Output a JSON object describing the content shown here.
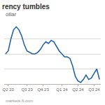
{
  "chart_data": {
    "type": "line",
    "title": "rency tumbles",
    "subtitle": "ollar",
    "source": "markets.ft.com",
    "categories": [
      null,
      "Q2 23",
      null,
      null,
      null,
      null,
      null,
      null,
      "Q3 23",
      null,
      null,
      null,
      null,
      null,
      "Q4 23",
      null,
      null,
      null,
      null,
      null,
      null,
      "Q1 24",
      null,
      null,
      null,
      null,
      null,
      "Q2 24",
      null,
      null,
      null,
      null,
      null,
      "Q3 24",
      null,
      null
    ],
    "values": [
      3.0,
      3.1,
      3.5,
      3.8,
      3.9,
      3.8,
      3.6,
      3.3,
      3.1,
      3.05,
      3.0,
      3.0,
      3.05,
      3.15,
      3.3,
      3.4,
      3.35,
      3.45,
      3.4,
      3.25,
      3.1,
      3.0,
      2.9,
      2.9,
      2.85,
      2.6,
      2.25,
      2.1,
      2.05,
      2.15,
      2.3,
      2.15,
      2.2,
      2.35,
      2.5,
      2.15
    ],
    "color": "#1a5ea8",
    "ylim": [
      2,
      4
    ],
    "yticks": [
      2,
      2.5,
      3,
      3.5,
      4
    ],
    "grid": true,
    "tick_labels": "x"
  }
}
